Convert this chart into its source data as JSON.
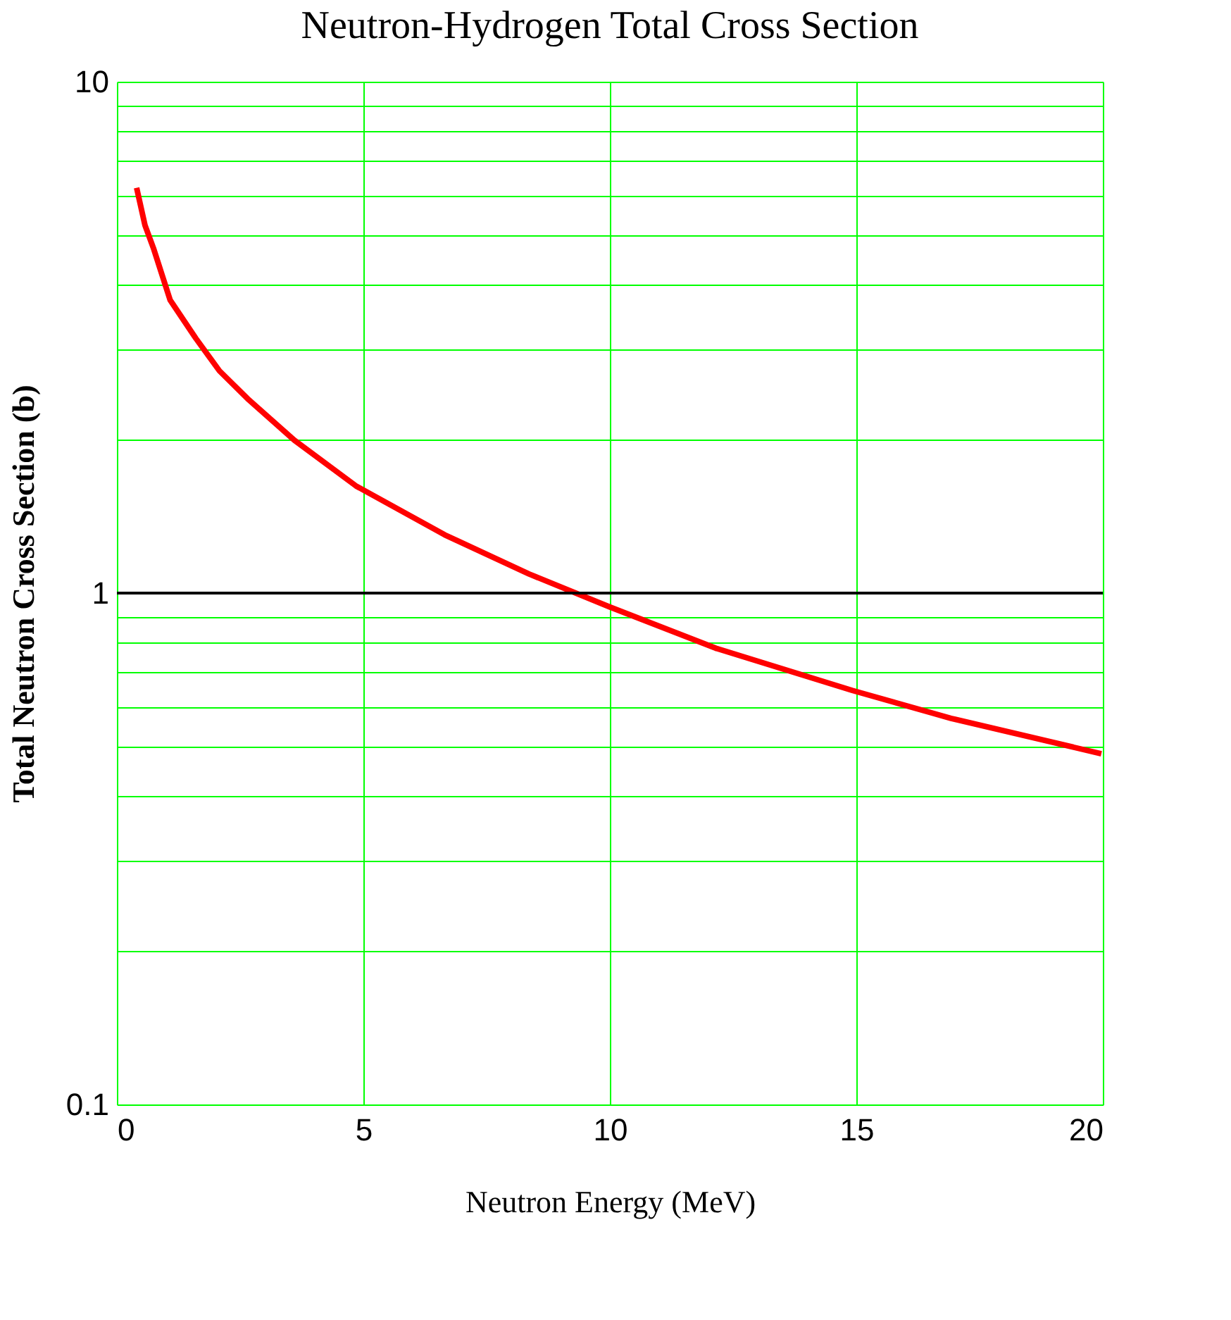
{
  "chart_data": {
    "type": "line",
    "title": "Neutron-Hydrogen Total Cross Section",
    "xlabel": "Neutron Energy (MeV)",
    "ylabel": "Total Neutron Cross Section (b)",
    "x": [
      0.4,
      0.57,
      0.74,
      1.08,
      1.6,
      2.08,
      2.65,
      3.6,
      4.85,
      6.65,
      8.36,
      9.99,
      12.15,
      14.92,
      16.92,
      19.97
    ],
    "series": [
      {
        "color": "#ff0000",
        "values": [
          6.2,
          5.24,
          4.73,
          3.74,
          3.15,
          2.72,
          2.4,
          1.99,
          1.62,
          1.3,
          1.09,
          0.94,
          0.78,
          0.645,
          0.569,
          0.485
        ]
      }
    ],
    "log": "y",
    "xlim": [
      0,
      20
    ],
    "xticks": [
      0,
      5,
      10,
      15,
      20
    ],
    "ylim": [
      0.1,
      10
    ],
    "yticks": [
      0.1,
      {
        "value": 0.2,
        "label": null
      },
      {
        "value": 0.3,
        "label": null
      },
      {
        "value": 0.4,
        "label": null
      },
      {
        "value": 0.5,
        "label": null
      },
      {
        "value": 0.6,
        "label": null
      },
      {
        "value": 0.7,
        "label": null
      },
      {
        "value": 0.8,
        "label": null
      },
      {
        "value": 0.9,
        "label": null
      },
      1,
      {
        "value": 2,
        "label": null
      },
      {
        "value": 3,
        "label": null
      },
      {
        "value": 4,
        "label": null
      },
      {
        "value": 5,
        "label": null
      },
      {
        "value": 6,
        "label": null
      },
      {
        "value": 7,
        "label": null
      },
      {
        "value": 8,
        "label": null
      },
      {
        "value": 9,
        "label": null
      },
      10
    ],
    "grid": true,
    "line_style": "solid",
    "marker": "none",
    "ref_lines": [
      {
        "axis": "y",
        "value": 1,
        "color": "#000000"
      }
    ]
  }
}
